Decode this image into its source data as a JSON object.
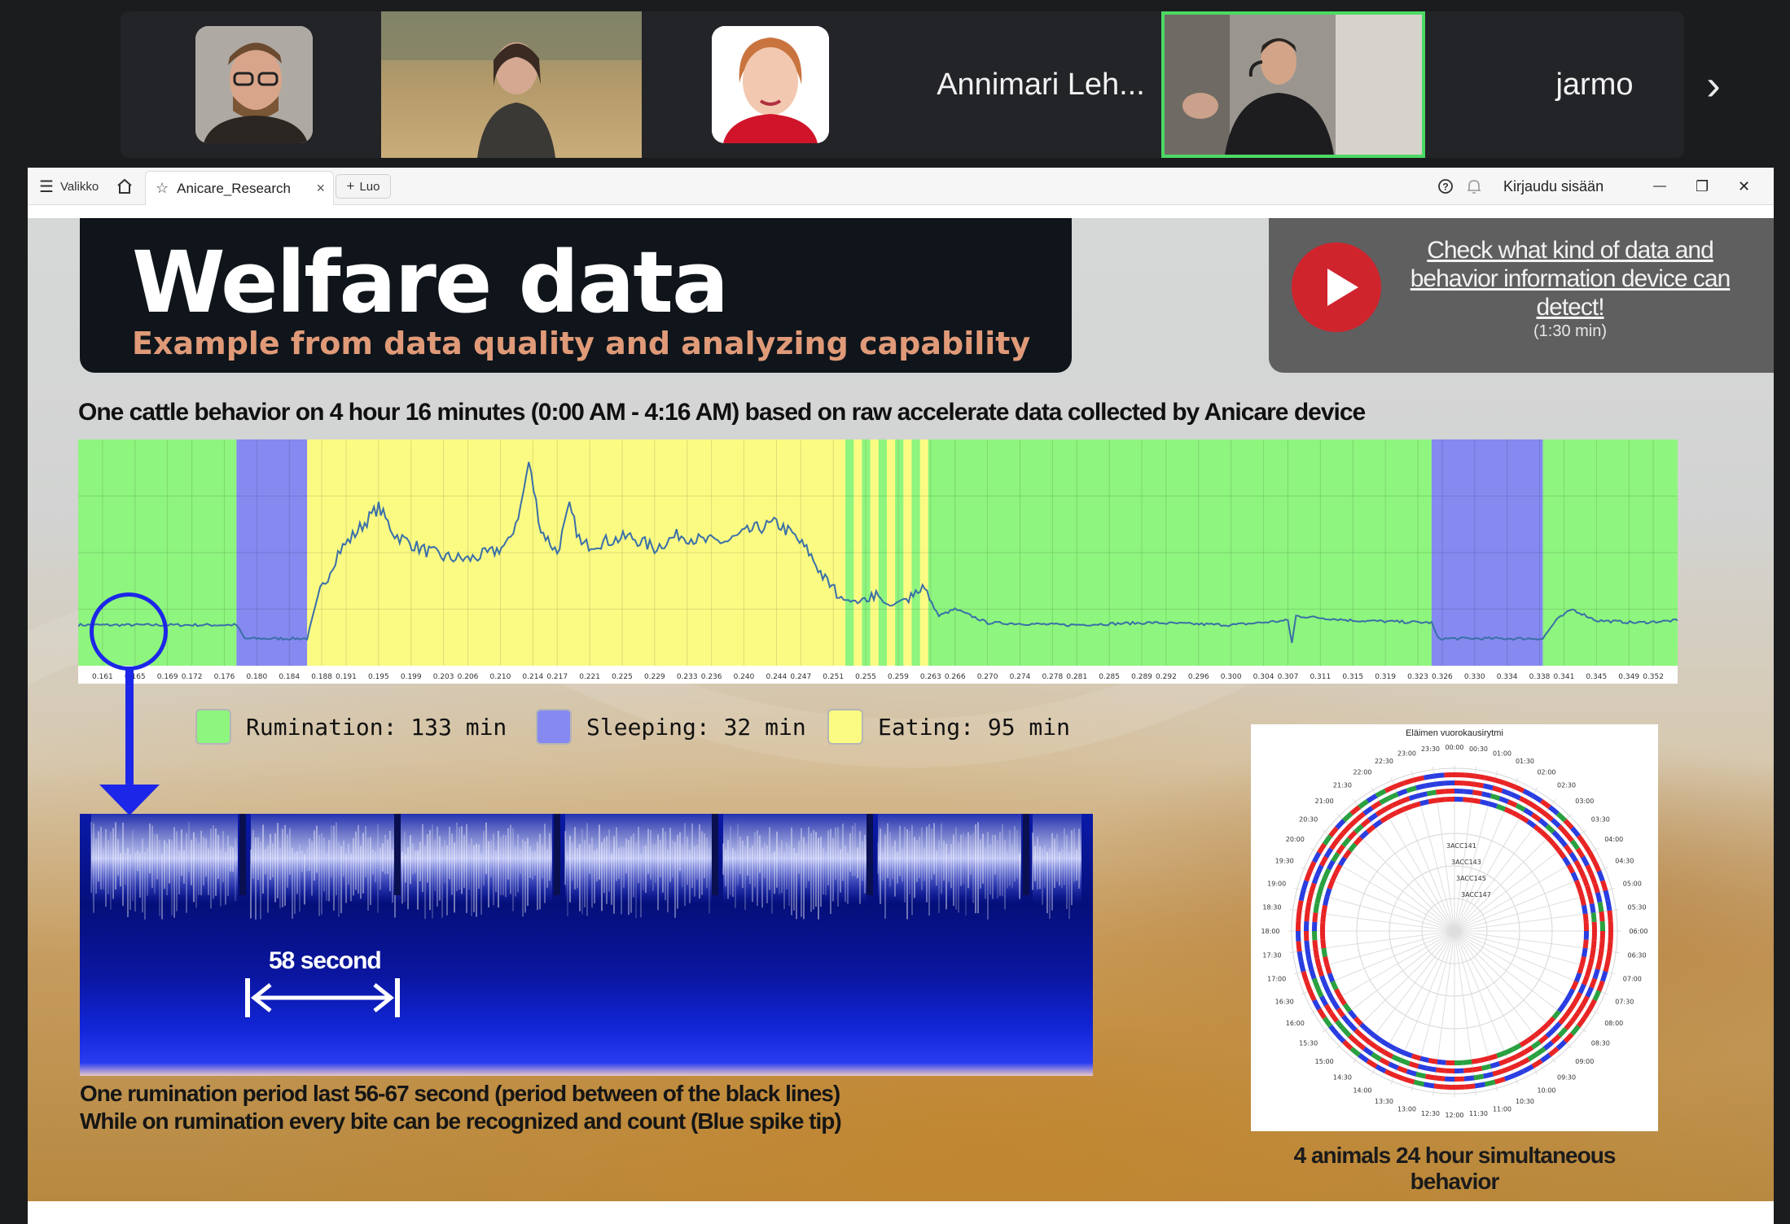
{
  "call": {
    "participants": [
      {
        "type": "video",
        "name": ""
      },
      {
        "type": "video",
        "name": ""
      },
      {
        "type": "avatar",
        "name": ""
      },
      {
        "type": "name",
        "name": "Annimari Leh..."
      },
      {
        "type": "video",
        "name": ""
      },
      {
        "type": "name",
        "name": "jarmo"
      }
    ],
    "next_icon": "chevron-right-icon",
    "active_speaker_color": "#4cd964"
  },
  "browser": {
    "menu_label": "Valikko",
    "home_icon": "home-icon",
    "tab_title": "Anicare_Research",
    "tab_close": "×",
    "new_tab_label": "Luo",
    "help_icon": "help-icon",
    "bell_icon": "bell-icon",
    "login_label": "Kirjaudu sisään",
    "minimize": "—",
    "restore": "❐",
    "close": "✕"
  },
  "slide": {
    "title": "Welfare data",
    "subtitle": "Example from data quality and analyzing capability",
    "video_link": "Check what kind of data and behavior information device can detect!",
    "video_duration": "(1:30 min)",
    "chart_caption": "One cattle behavior on 4 hour 16 minutes (0:00 AM - 4:16 AM) based on raw accelerate data collected by Anicare device",
    "legend": [
      {
        "label": "Rumination: 133 min",
        "color": "#8ef57e"
      },
      {
        "label": "Sleeping: 32 min",
        "color": "#8589f0"
      },
      {
        "label": "Eating: 95 min",
        "color": "#fbfb84"
      }
    ],
    "interval_label": "58 second",
    "note_line1": "One rumination period last 56-67 second (period between of the black lines)",
    "note_line2": "While on rumination every bite can be recognized and count (Blue spike tip)",
    "polar_title": "Eläimen vuorokausirytmi",
    "polar_caption": "4 animals 24 hour simultaneous behavior",
    "polar_series": [
      "3ACC141",
      "3ACC143",
      "3ACC145",
      "3ACC147"
    ],
    "polar_hours": [
      "00:00",
      "00:30",
      "01:00",
      "01:30",
      "02:00",
      "02:30",
      "03:00",
      "03:30",
      "04:00",
      "04:30",
      "05:00",
      "05:30",
      "06:00",
      "06:30",
      "07:00",
      "07:30",
      "08:00",
      "08:30",
      "09:00",
      "09:30",
      "10:00",
      "10:30",
      "11:00",
      "11:30",
      "12:00",
      "12:30",
      "13:00",
      "13:30",
      "14:00",
      "14:30",
      "15:00",
      "15:30",
      "16:00",
      "16:30",
      "17:00",
      "17:30",
      "18:00",
      "18:30",
      "19:00",
      "19:30",
      "20:00",
      "20:30",
      "21:00",
      "21:30",
      "22:00",
      "22:30",
      "23:00",
      "23:30"
    ]
  },
  "chart_data": {
    "type": "line",
    "title": "One cattle behavior on 4 hour 16 minutes (0:00 AM - 4:16 AM) based on raw accelerate data collected by Anicare device",
    "xlabel": "",
    "ylabel": "",
    "x_ticks": [
      "0.161",
      "0.165",
      "0.169",
      "0.172",
      "0.176",
      "0.180",
      "0.184",
      "0.188",
      "0.191",
      "0.195",
      "0.199",
      "0.203",
      "0.206",
      "0.210",
      "0.214",
      "0.217",
      "0.221",
      "0.225",
      "0.229",
      "0.233",
      "0.236",
      "0.240",
      "0.244",
      "0.247",
      "0.251",
      "0.255",
      "0.259",
      "0.263",
      "0.266",
      "0.270",
      "0.274",
      "0.278",
      "0.281",
      "0.285",
      "0.289",
      "0.292",
      "0.296",
      "0.300",
      "0.304",
      "0.307",
      "0.311",
      "0.315",
      "0.319",
      "0.323",
      "0.326",
      "0.330",
      "0.334",
      "0.338",
      "0.341",
      "0.345",
      "0.349",
      "0.352"
    ],
    "xlim": [
      0.158,
      0.355
    ],
    "grid": true,
    "segments": [
      {
        "from": 0.158,
        "to": 0.1775,
        "state": "Rumination"
      },
      {
        "from": 0.1775,
        "to": 0.1862,
        "state": "Sleeping"
      },
      {
        "from": 0.1862,
        "to": 0.2525,
        "state": "Eating"
      },
      {
        "from": 0.2525,
        "to": 0.2627,
        "state": "Rumination/Eating"
      },
      {
        "from": 0.2627,
        "to": 0.3247,
        "state": "Rumination"
      },
      {
        "from": 0.3247,
        "to": 0.3384,
        "state": "Sleeping"
      },
      {
        "from": 0.3384,
        "to": 0.355,
        "state": "Rumination"
      }
    ],
    "series": [
      {
        "x": [
          0.158,
          0.1775,
          0.1785,
          0.1862,
          0.1875,
          0.19,
          0.193,
          0.195,
          0.197,
          0.2,
          0.203,
          0.206,
          0.209,
          0.211,
          0.2125,
          0.2135,
          0.215,
          0.217,
          0.2185,
          0.22,
          0.223,
          0.226,
          0.229,
          0.232,
          0.235,
          0.238,
          0.241,
          0.244,
          0.246,
          0.248,
          0.25,
          0.252,
          0.254,
          0.256,
          0.258,
          0.26,
          0.262,
          0.264,
          0.266,
          0.27,
          0.28,
          0.29,
          0.3,
          0.307,
          0.3075,
          0.308,
          0.315,
          0.3247,
          0.3255,
          0.3384,
          0.34,
          0.342,
          0.345,
          0.35,
          0.355
        ],
        "y": [
          0.18,
          0.18,
          0.12,
          0.12,
          0.3,
          0.5,
          0.62,
          0.7,
          0.58,
          0.52,
          0.48,
          0.47,
          0.5,
          0.54,
          0.7,
          0.9,
          0.6,
          0.5,
          0.7,
          0.53,
          0.55,
          0.57,
          0.52,
          0.58,
          0.55,
          0.55,
          0.6,
          0.63,
          0.58,
          0.5,
          0.38,
          0.3,
          0.28,
          0.32,
          0.26,
          0.3,
          0.35,
          0.22,
          0.25,
          0.19,
          0.18,
          0.19,
          0.18,
          0.2,
          0.1,
          0.22,
          0.2,
          0.19,
          0.12,
          0.12,
          0.2,
          0.25,
          0.2,
          0.19,
          0.2
        ]
      }
    ]
  }
}
